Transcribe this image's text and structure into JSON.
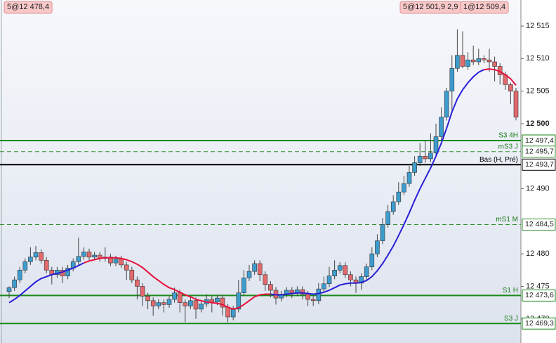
{
  "chart_data": {
    "type": "candlestick",
    "tags": [
      "5@12 478,4",
      "5@12 501,9 2,9",
      "1@12 509,4"
    ],
    "ylim": [
      12466.3,
      12519
    ],
    "yticks": [
      {
        "value": 12515,
        "label": "12 515"
      },
      {
        "value": 12510,
        "label": "12 510"
      },
      {
        "value": 12505,
        "label": "12 505"
      },
      {
        "value": 12500,
        "label": "12 500"
      },
      {
        "value": 12490,
        "label": "12 490"
      },
      {
        "value": 12480,
        "label": "12 480"
      },
      {
        "value": 12475,
        "label": "12 475"
      },
      {
        "value": 12470,
        "label": "12 470"
      }
    ],
    "up_color": "#3d9ccd",
    "down_color": "#e2696c",
    "candles": [
      [
        12474.2,
        12475.0,
        12473.2,
        12474.8
      ],
      [
        12474.8,
        12476.5,
        12474.3,
        12476
      ],
      [
        12476,
        12478,
        12475.5,
        12477.5
      ],
      [
        12477.5,
        12479.3,
        12477,
        12478.8
      ],
      [
        12478.8,
        12481,
        12478.3,
        12479.5
      ],
      [
        12479.5,
        12481.2,
        12479,
        12480.2
      ],
      [
        12480.2,
        12480.7,
        12478.5,
        12479
      ],
      [
        12479,
        12479.5,
        12477,
        12477.5
      ],
      [
        12477.5,
        12478,
        12475.3,
        12476.8
      ],
      [
        12476.8,
        12478,
        12476.3,
        12477.5
      ],
      [
        12477.5,
        12478,
        12475.5,
        12476.6
      ],
      [
        12476.6,
        12478.3,
        12476.1,
        12477.8
      ],
      [
        12477.8,
        12479.3,
        12477.3,
        12478.8
      ],
      [
        12478.8,
        12482.5,
        12478.3,
        12479.6
      ],
      [
        12479.6,
        12481,
        12479.1,
        12480.3
      ],
      [
        12480.3,
        12480.8,
        12479,
        12479.5
      ],
      [
        12479.5,
        12480.3,
        12479,
        12479.8
      ],
      [
        12479.8,
        12480.3,
        12478.8,
        12479.3
      ],
      [
        12479.3,
        12481,
        12478.8,
        12479.5
      ],
      [
        12479.5,
        12480,
        12478.1,
        12478.6
      ],
      [
        12478.6,
        12479.7,
        12478.1,
        12479.2
      ],
      [
        12479.2,
        12479.7,
        12477.8,
        12478.3
      ],
      [
        12478.3,
        12478.8,
        12476,
        12477.5
      ],
      [
        12477.5,
        12478,
        12475.5,
        12476
      ],
      [
        12476,
        12476.5,
        12473,
        12475
      ],
      [
        12475,
        12475.5,
        12472,
        12473.5
      ],
      [
        12473.5,
        12474,
        12471.5,
        12472.8
      ],
      [
        12472.8,
        12473.3,
        12470.5,
        12472
      ],
      [
        12472,
        12473,
        12471.5,
        12472.5
      ],
      [
        12472.5,
        12473,
        12471,
        12472.2
      ],
      [
        12472.2,
        12473.5,
        12471.7,
        12473
      ],
      [
        12473,
        12474.8,
        12472.5,
        12474
      ],
      [
        12474,
        12474.5,
        12471,
        12472.5
      ],
      [
        12472.5,
        12473,
        12469.5,
        12472
      ],
      [
        12472,
        12473.5,
        12471.5,
        12472.8
      ],
      [
        12472.8,
        12473.3,
        12470,
        12471.5
      ],
      [
        12471.5,
        12472.8,
        12471,
        12472.3
      ],
      [
        12472.3,
        12473.8,
        12471.8,
        12473
      ],
      [
        12473,
        12473.5,
        12471,
        12472.6
      ],
      [
        12472.6,
        12473.7,
        12472.1,
        12473.2
      ],
      [
        12473.2,
        12473.7,
        12470.5,
        12471.8
      ],
      [
        12471.8,
        12472.3,
        12469.5,
        12470.3
      ],
      [
        12470.3,
        12472,
        12469.8,
        12471.5
      ],
      [
        12471.5,
        12476,
        12471,
        12474
      ],
      [
        12474,
        12477.5,
        12473.5,
        12476.3
      ],
      [
        12476.3,
        12478.3,
        12475.8,
        12477.3
      ],
      [
        12477.3,
        12479,
        12476.8,
        12478.5
      ],
      [
        12478.5,
        12479,
        12475.8,
        12476.8
      ],
      [
        12476.8,
        12477.3,
        12474.3,
        12475.3
      ],
      [
        12475.3,
        12475.8,
        12473.3,
        12474.4
      ],
      [
        12474.4,
        12474.9,
        12472.2,
        12473.2
      ],
      [
        12473.2,
        12474.3,
        12472.7,
        12473.8
      ],
      [
        12473.8,
        12474.9,
        12473.3,
        12474.4
      ],
      [
        12474.4,
        12474.9,
        12473.2,
        12474
      ],
      [
        12474,
        12475,
        12473.5,
        12474.5
      ],
      [
        12474.5,
        12475,
        12473,
        12473.8
      ],
      [
        12473.8,
        12474.3,
        12472,
        12473
      ],
      [
        12473,
        12473.5,
        12472,
        12472.8
      ],
      [
        12472.8,
        12475.5,
        12472.3,
        12474.6
      ],
      [
        12474.6,
        12476.5,
        12474.1,
        12475.4
      ],
      [
        12475.4,
        12478,
        12474.9,
        12476.6
      ],
      [
        12476.6,
        12479,
        12476.1,
        12477.5
      ],
      [
        12477.5,
        12478.7,
        12477,
        12478.2
      ],
      [
        12478.2,
        12478.7,
        12476.3,
        12476.8
      ],
      [
        12476.8,
        12477.3,
        12475,
        12476
      ],
      [
        12476,
        12476.5,
        12474,
        12475.5
      ],
      [
        12475.5,
        12477,
        12474.5,
        12476.5
      ],
      [
        12476.5,
        12478.5,
        12476,
        12478
      ],
      [
        12478,
        12481,
        12477.5,
        12480
      ],
      [
        12480,
        12483,
        12479.5,
        12482
      ],
      [
        12482,
        12485.5,
        12481.5,
        12484.5
      ],
      [
        12484.5,
        12487.5,
        12484,
        12486.5
      ],
      [
        12486.5,
        12489,
        12486,
        12488
      ],
      [
        12488,
        12491,
        12487.5,
        12489.5
      ],
      [
        12489.5,
        12492,
        12489,
        12490.8
      ],
      [
        12490.8,
        12493.5,
        12490.3,
        12492.5
      ],
      [
        12492.5,
        12495,
        12492,
        12494
      ],
      [
        12494,
        12497,
        12493.5,
        12495
      ],
      [
        12495,
        12497.5,
        12494,
        12494.6
      ],
      [
        12494.6,
        12498.5,
        12494.1,
        12495.5
      ],
      [
        12495.5,
        12500,
        12495,
        12498
      ],
      [
        12498,
        12502.5,
        12497.5,
        12501
      ],
      [
        12501,
        12505.5,
        12500.5,
        12505
      ],
      [
        12505,
        12510.5,
        12502,
        12508.5
      ],
      [
        12508.5,
        12514.5,
        12508,
        12510.5
      ],
      [
        12510.5,
        12514.2,
        12508.5,
        12508.8
      ],
      [
        12508.8,
        12511,
        12508.3,
        12509.8
      ],
      [
        12509.8,
        12512,
        12509,
        12509.5
      ],
      [
        12509.5,
        12511.5,
        12509,
        12510
      ],
      [
        12510,
        12510.5,
        12509.3,
        12509.8
      ],
      [
        12509.8,
        12511.5,
        12508,
        12509.5
      ],
      [
        12509.5,
        12510.3,
        12506.5,
        12508.8
      ],
      [
        12508.8,
        12509.3,
        12506,
        12507.5
      ],
      [
        12507.5,
        12508,
        12505.2,
        12506
      ],
      [
        12506,
        12506.3,
        12503,
        12505
      ],
      [
        12505,
        12505.5,
        12500.5,
        12501
      ]
    ],
    "series": [
      {
        "color": "#2a1fd8",
        "values": [
          12472.5,
          12473,
          12473.6,
          12474.3,
          12475,
          12475.7,
          12476.2,
          12476.5,
          12476.8,
          12477,
          12477.2,
          12477.5,
          12477.8,
          12478.2,
          12478.6,
          null,
          null,
          null,
          null,
          null,
          null,
          null,
          null,
          null,
          null,
          null,
          null,
          null,
          null,
          null,
          null,
          null,
          null,
          null,
          null,
          null,
          null,
          null,
          null,
          null,
          null,
          null,
          null,
          null,
          null,
          null,
          null,
          null,
          null,
          12473.8,
          12473.7,
          12473.7,
          12473.8,
          12473.9,
          12474,
          12474,
          12473.9,
          12473.8,
          12473.9,
          12474.1,
          12474.4,
          12474.8,
          12475.2,
          12475.4,
          12475.5,
          12475.5,
          12475.6,
          12475.9,
          12476.5,
          12477.4,
          12478.5,
          12479.8,
          12481.2,
          12482.8,
          12484.5,
          12486.3,
          12488.2,
          12490,
          12491.6,
          12493.2,
          12495,
          12497,
          12499.3,
          12501.8,
          12503.8,
          12505.2,
          12506.3,
          12507.2,
          12507.9,
          12508.3,
          null,
          null,
          null,
          null,
          null,
          null,
          null
        ]
      },
      {
        "color": "#e8103c",
        "values": [
          null,
          null,
          null,
          null,
          null,
          null,
          null,
          null,
          null,
          null,
          null,
          null,
          null,
          null,
          12478.6,
          12478.9,
          12479.1,
          12479.3,
          12479.4,
          12479.4,
          12479.4,
          12479.3,
          12479.1,
          12478.8,
          12478.4,
          12477.9,
          12477.2,
          12476.5,
          12475.9,
          12475.3,
          12474.8,
          12474.5,
          12474.1,
          12473.7,
          12473.4,
          12473,
          12472.8,
          12472.6,
          12472.5,
          12472.4,
          12472.2,
          12471.8,
          12471.5,
          12471.7,
          12472.2,
          12472.8,
          12473.4,
          12473.7,
          12473.8,
          12473.8,
          null,
          null,
          null,
          null,
          null,
          null,
          null,
          null,
          null,
          null,
          null,
          null,
          null,
          null,
          null,
          null,
          null,
          null,
          null,
          null,
          null,
          null,
          null,
          null,
          null,
          null,
          null,
          null,
          null,
          null,
          null,
          null,
          null,
          null,
          null,
          null,
          null,
          null,
          null,
          12508.3,
          12508.4,
          12508.3,
          12508,
          12507.5,
          12506.9,
          12505.9
        ]
      }
    ],
    "levels": [
      {
        "label": "S3 4H",
        "value": 12497.4,
        "value_label": "12 497,4",
        "color": "#1a8a1a",
        "style": "solid"
      },
      {
        "label": "mS3 J",
        "value": 12495.7,
        "value_label": "12 495,7",
        "color": "#2f8f2f",
        "style": "dashed"
      },
      {
        "label": "Bas (H, Pré)",
        "value": 12493.7,
        "value_label": "12 493,7",
        "color": "#000000",
        "style": "solid"
      },
      {
        "label": "mS1 M",
        "value": 12484.5,
        "value_label": "12 484,5",
        "color": "#2f8f2f",
        "style": "dashed"
      },
      {
        "label": "S1 H",
        "value": 12473.6,
        "value_label": "12 473,6",
        "color": "#1a8a1a",
        "style": "solid"
      },
      {
        "label": "S3 J",
        "value": 12469.3,
        "value_label": "12 469,3",
        "color": "#1a8a1a",
        "style": "solid"
      }
    ]
  }
}
